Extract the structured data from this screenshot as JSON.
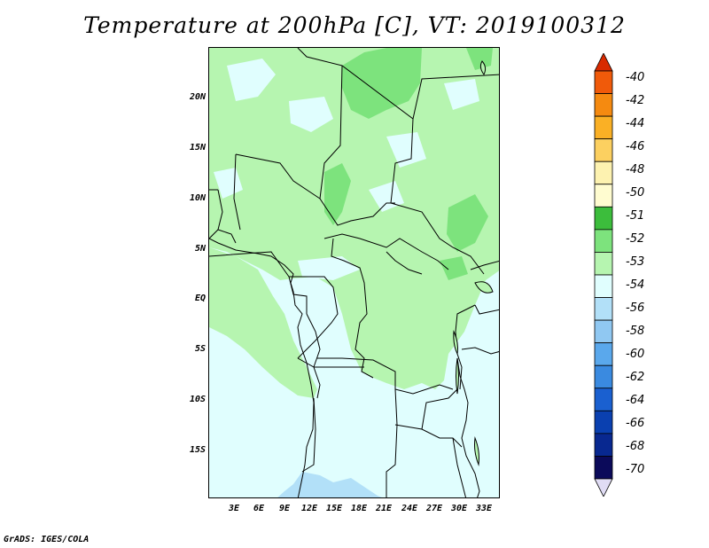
{
  "title": "Temperature at 200hPa [C], VT: 2019100312",
  "footer": "GrADS: IGES/COLA",
  "y_axis": [
    "20N",
    "15N",
    "10N",
    "5N",
    "EQ",
    "5S",
    "10S",
    "15S"
  ],
  "x_axis": [
    "3E",
    "6E",
    "9E",
    "12E",
    "15E",
    "18E",
    "21E",
    "24E",
    "27E",
    "30E",
    "33E"
  ],
  "colorbar": {
    "labels": [
      "-40",
      "-42",
      "-44",
      "-46",
      "-48",
      "-50",
      "-51",
      "-52",
      "-53",
      "-54",
      "-56",
      "-58",
      "-60",
      "-62",
      "-64",
      "-66",
      "-68",
      "-70"
    ],
    "colors": [
      "#d82a00",
      "#f05a0a",
      "#f58a10",
      "#fab025",
      "#fcd060",
      "#fdf2b0",
      "#fffcd0",
      "#3cbd3c",
      "#7de37d",
      "#b6f5b0",
      "#e0fefe",
      "#b2e0f8",
      "#90c8f2",
      "#5aa8ec",
      "#3a8ae0",
      "#1a60d0",
      "#0a40b0",
      "#082890",
      "#0b0a5a",
      "#e0dcf4"
    ]
  }
}
